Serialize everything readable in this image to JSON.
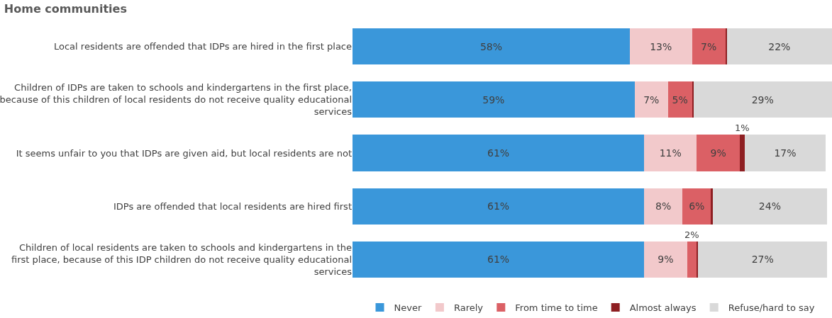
{
  "chart_data": {
    "type": "bar",
    "orientation": "horizontal",
    "stacked": true,
    "title": "Home communities",
    "legend": "bottom",
    "categories": [
      "Local residents are offended that IDPs are hired in the first place",
      "Children of IDPs are taken to schools and kindergartens in the first place, because of this children of local residents do not receive quality educational services",
      "It seems unfair to you that IDPs are given aid, but local residents are not",
      "IDPs are offended that local residents are hired first",
      "Children of local residents are taken to schools and kindergartens in the first place, because of this IDP children do not receive quality educational services"
    ],
    "series": [
      {
        "name": "Never",
        "color": "#3a97da",
        "values": [
          58,
          59,
          61,
          61,
          61
        ],
        "value_labels": [
          "58%",
          "59%",
          "61%",
          "61%",
          "61%"
        ]
      },
      {
        "name": "Rarely",
        "color": "#f2c9cb",
        "values": [
          13,
          7,
          11,
          8,
          9
        ],
        "value_labels": [
          "13%",
          "7%",
          "11%",
          "8%",
          "9%"
        ]
      },
      {
        "name": "From time to time",
        "color": "#db6065",
        "values": [
          7,
          5,
          9,
          6,
          2
        ],
        "value_labels": [
          "7%",
          "5%",
          "9%",
          "6%",
          "2%"
        ]
      },
      {
        "name": "Almost always",
        "color": "#8e1f22",
        "values": [
          0.3,
          0.3,
          1,
          0.3,
          0.3
        ],
        "value_labels": [
          null,
          null,
          "1%",
          null,
          null
        ]
      },
      {
        "name": "Refuse/hard to say",
        "color": "#d9d9d9",
        "values": [
          22,
          29,
          17,
          24,
          27
        ],
        "value_labels": [
          "22%",
          "29%",
          "17%",
          "24%",
          "27%"
        ]
      }
    ]
  }
}
